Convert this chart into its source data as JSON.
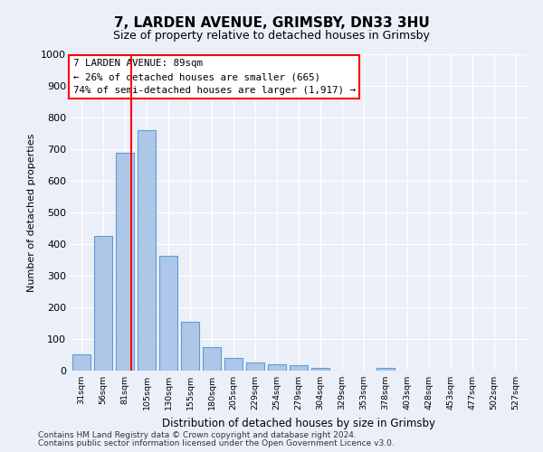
{
  "title": "7, LARDEN AVENUE, GRIMSBY, DN33 3HU",
  "subtitle": "Size of property relative to detached houses in Grimsby",
  "xlabel": "Distribution of detached houses by size in Grimsby",
  "ylabel": "Number of detached properties",
  "bar_color": "#aec6e8",
  "bar_edge_color": "#5a9fd4",
  "categories": [
    "31sqm",
    "56sqm",
    "81sqm",
    "105sqm",
    "130sqm",
    "155sqm",
    "180sqm",
    "205sqm",
    "229sqm",
    "254sqm",
    "279sqm",
    "304sqm",
    "329sqm",
    "353sqm",
    "378sqm",
    "403sqm",
    "428sqm",
    "453sqm",
    "477sqm",
    "502sqm",
    "527sqm"
  ],
  "values": [
    52,
    425,
    690,
    760,
    363,
    155,
    75,
    40,
    27,
    20,
    17,
    10,
    0,
    0,
    9,
    0,
    0,
    0,
    0,
    0,
    0
  ],
  "annotation_text": "7 LARDEN AVENUE: 89sqm\n← 26% of detached houses are smaller (665)\n74% of semi-detached houses are larger (1,917) →",
  "annotation_box_color": "white",
  "annotation_border_color": "red",
  "vline_color": "red",
  "vline_x": 2.3,
  "ylim": [
    0,
    1000
  ],
  "yticks": [
    0,
    100,
    200,
    300,
    400,
    500,
    600,
    700,
    800,
    900,
    1000
  ],
  "footer_line1": "Contains HM Land Registry data © Crown copyright and database right 2024.",
  "footer_line2": "Contains public sector information licensed under the Open Government Licence v3.0.",
  "bg_color": "#eaeff8",
  "plot_bg_color": "#eaeff8"
}
